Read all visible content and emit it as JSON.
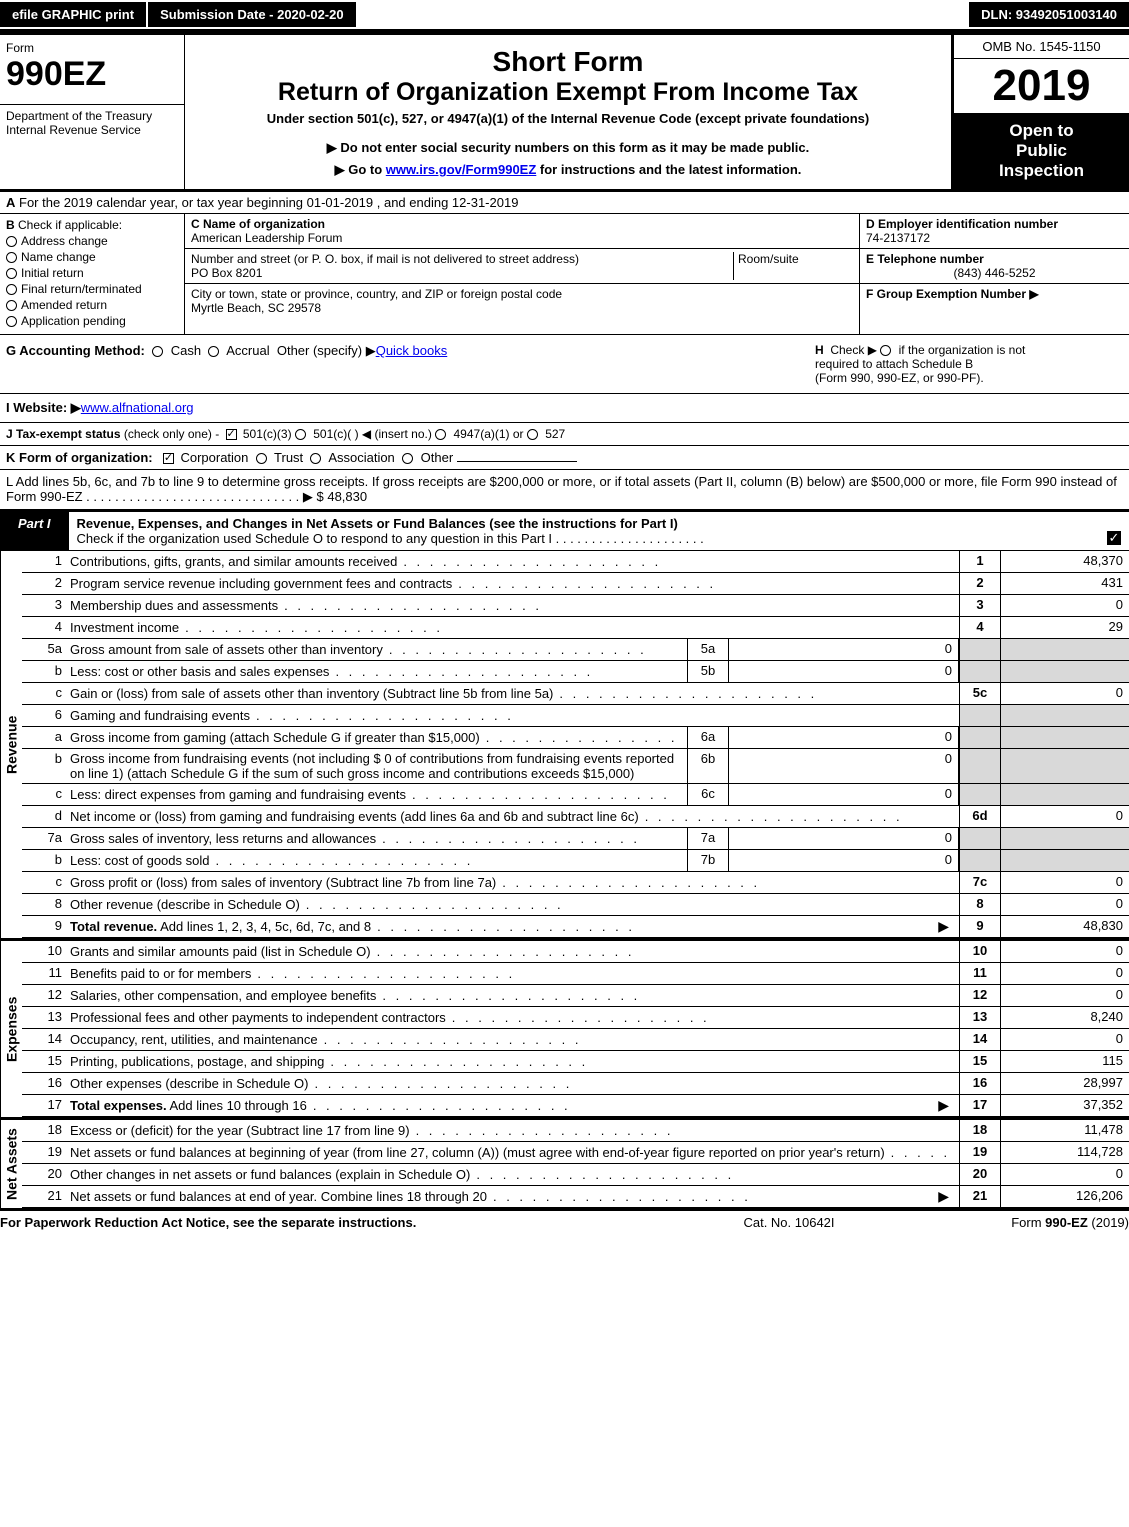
{
  "top": {
    "efile": "efile GRAPHIC print",
    "sub_date": "Submission Date - 2020-02-20",
    "dln": "DLN: 93492051003140"
  },
  "hdr": {
    "form_word": "Form",
    "form_num": "990EZ",
    "dept1": "Department of the Treasury",
    "dept2": "Internal Revenue Service",
    "short_form": "Short Form",
    "title": "Return of Organization Exempt From Income Tax",
    "under": "Under section 501(c), 527, or 4947(a)(1) of the Internal Revenue Code (except private foundations)",
    "do_not": "▶ Do not enter social security numbers on this form as it may be made public.",
    "goto": "▶ Go to ",
    "goto_link": "www.irs.gov/Form990EZ",
    "goto_after": " for instructions and the latest information.",
    "omb": "OMB No. 1545-1150",
    "year": "2019",
    "open1": "Open to",
    "open2": "Public",
    "open3": "Inspection"
  },
  "A": "For the 2019 calendar year, or tax year beginning 01-01-2019 , and ending 12-31-2019",
  "B": {
    "title": "Check if applicable:",
    "items": [
      "Address change",
      "Name change",
      "Initial return",
      "Final return/terminated",
      "Amended return",
      "Application pending"
    ]
  },
  "C": {
    "name_lbl": "C Name of organization",
    "name": "American Leadership Forum",
    "addr_lbl": "Number and street (or P. O. box, if mail is not delivered to street address)",
    "room_lbl": "Room/suite",
    "addr": "PO Box 8201",
    "city_lbl": "City or town, state or province, country, and ZIP or foreign postal code",
    "city": "Myrtle Beach, SC  29578"
  },
  "D": {
    "lbl": "D Employer identification number",
    "val": "74-2137172"
  },
  "E": {
    "lbl": "E Telephone number",
    "val": "(843) 446-5252"
  },
  "F": {
    "lbl": "F Group Exemption Number  ▶"
  },
  "G": {
    "lbl": "G Accounting Method:",
    "cash": "Cash",
    "accr": "Accrual",
    "other": "Other (specify) ▶",
    "val": "Quick books"
  },
  "H": {
    "lbl": "H",
    "l1": "Check ▶",
    "l1b": "if the organization is not",
    "l2": "required to attach Schedule B",
    "l3": "(Form 990, 990-EZ, or 990-PF)."
  },
  "I": {
    "lbl": "I Website: ▶",
    "val": "www.alfnational.org"
  },
  "J": "J Tax-exempt status (check only one) -   501(c)(3)   501(c)( )  ◀ (insert no.)   4947(a)(1) or   527",
  "K": {
    "lbl": "K Form of organization:",
    "corp": "Corporation",
    "trust": "Trust",
    "assoc": "Association",
    "other": "Other"
  },
  "L": {
    "text": "L Add lines 5b, 6c, and 7b to line 9 to determine gross receipts. If gross receipts are $200,000 or more, or if total assets (Part II, column (B) below) are $500,000 or more, file Form 990 instead of Form 990-EZ . . . . . . . . . . . . . . . . . . . . . . . . . . . . . .  ▶ $ 48,830"
  },
  "part1": {
    "lbl": "Part I",
    "title": "Revenue, Expenses, and Changes in Net Assets or Fund Balances (see the instructions for Part I)",
    "check": "Check if the organization used Schedule O to respond to any question in this Part I . . . . . . . . . . . . . . . . . . . . ."
  },
  "rev": [
    {
      "n": "1",
      "d": "Contributions, gifts, grants, and similar amounts received",
      "rn": "1",
      "rv": "48,370"
    },
    {
      "n": "2",
      "d": "Program service revenue including government fees and contracts",
      "rn": "2",
      "rv": "431"
    },
    {
      "n": "3",
      "d": "Membership dues and assessments",
      "rn": "3",
      "rv": "0"
    },
    {
      "n": "4",
      "d": "Investment income",
      "rn": "4",
      "rv": "29"
    },
    {
      "n": "5a",
      "d": "Gross amount from sale of assets other than inventory",
      "mn": "5a",
      "mv": "0"
    },
    {
      "n": "b",
      "d": "Less: cost or other basis and sales expenses",
      "mn": "5b",
      "mv": "0"
    },
    {
      "n": "c",
      "d": "Gain or (loss) from sale of assets other than inventory (Subtract line 5b from line 5a)",
      "rn": "5c",
      "rv": "0"
    },
    {
      "n": "6",
      "d": "Gaming and fundraising events"
    },
    {
      "n": "a",
      "d": "Gross income from gaming (attach Schedule G if greater than $15,000)",
      "mn": "6a",
      "mv": "0"
    },
    {
      "n": "b",
      "d": "Gross income from fundraising events (not including $  0            of contributions from fundraising events reported on line 1) (attach Schedule G if the sum of such gross income and contributions exceeds $15,000)",
      "mn": "6b",
      "mv": "0"
    },
    {
      "n": "c",
      "d": "Less: direct expenses from gaming and fundraising events",
      "mn": "6c",
      "mv": "0"
    },
    {
      "n": "d",
      "d": "Net income or (loss) from gaming and fundraising events (add lines 6a and 6b and subtract line 6c)",
      "rn": "6d",
      "rv": "0"
    },
    {
      "n": "7a",
      "d": "Gross sales of inventory, less returns and allowances",
      "mn": "7a",
      "mv": "0"
    },
    {
      "n": "b",
      "d": "Less: cost of goods sold",
      "mn": "7b",
      "mv": "0"
    },
    {
      "n": "c",
      "d": "Gross profit or (loss) from sales of inventory (Subtract line 7b from line 7a)",
      "rn": "7c",
      "rv": "0"
    },
    {
      "n": "8",
      "d": "Other revenue (describe in Schedule O)",
      "rn": "8",
      "rv": "0"
    },
    {
      "n": "9",
      "d": "Total revenue. Add lines 1, 2, 3, 4, 5c, 6d, 7c, and 8",
      "rn": "9",
      "rv": "48,830",
      "bold": true,
      "arrow": true
    }
  ],
  "exp": [
    {
      "n": "10",
      "d": "Grants and similar amounts paid (list in Schedule O)",
      "rn": "10",
      "rv": "0"
    },
    {
      "n": "11",
      "d": "Benefits paid to or for members",
      "rn": "11",
      "rv": "0"
    },
    {
      "n": "12",
      "d": "Salaries, other compensation, and employee benefits",
      "rn": "12",
      "rv": "0"
    },
    {
      "n": "13",
      "d": "Professional fees and other payments to independent contractors",
      "rn": "13",
      "rv": "8,240"
    },
    {
      "n": "14",
      "d": "Occupancy, rent, utilities, and maintenance",
      "rn": "14",
      "rv": "0"
    },
    {
      "n": "15",
      "d": "Printing, publications, postage, and shipping",
      "rn": "15",
      "rv": "115"
    },
    {
      "n": "16",
      "d": "Other expenses (describe in Schedule O)",
      "rn": "16",
      "rv": "28,997"
    },
    {
      "n": "17",
      "d": "Total expenses. Add lines 10 through 16",
      "rn": "17",
      "rv": "37,352",
      "bold": true,
      "arrow": true
    }
  ],
  "na": [
    {
      "n": "18",
      "d": "Excess or (deficit) for the year (Subtract line 17 from line 9)",
      "rn": "18",
      "rv": "11,478"
    },
    {
      "n": "19",
      "d": "Net assets or fund balances at beginning of year (from line 27, column (A)) (must agree with end-of-year figure reported on prior year's return)",
      "rn": "19",
      "rv": "114,728"
    },
    {
      "n": "20",
      "d": "Other changes in net assets or fund balances (explain in Schedule O)",
      "rn": "20",
      "rv": "0"
    },
    {
      "n": "21",
      "d": "Net assets or fund balances at end of year. Combine lines 18 through 20",
      "rn": "21",
      "rv": "126,206",
      "arrow": true
    }
  ],
  "ftr": {
    "l": "For Paperwork Reduction Act Notice, see the separate instructions.",
    "c": "Cat. No. 10642I",
    "r": "Form 990-EZ (2019)"
  },
  "vtabs": {
    "rev": "Revenue",
    "exp": "Expenses",
    "na": "Net Assets"
  }
}
